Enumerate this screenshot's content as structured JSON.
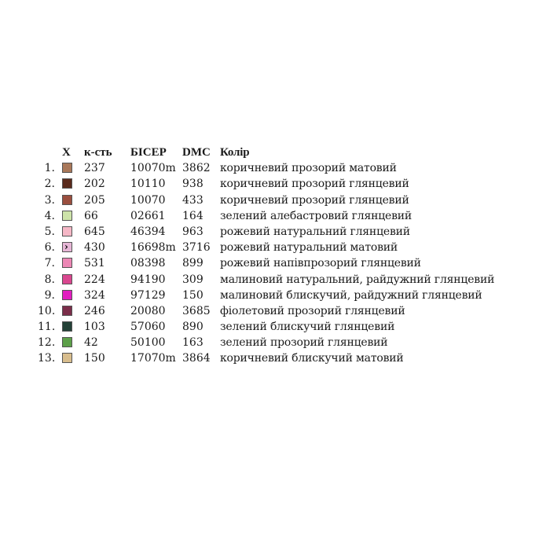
{
  "header": {
    "x": "X",
    "qty": "к-сть",
    "bead": "БІСЕР",
    "dmc": "DMC",
    "color": "Колір"
  },
  "rows": [
    {
      "num": "1.",
      "swatch": "#a9785a",
      "marker": "",
      "qty": "237",
      "bead": "10070m",
      "dmc": "3862",
      "color": "коричневий прозорий матовий"
    },
    {
      "num": "2.",
      "swatch": "#5a2a1c",
      "marker": "",
      "qty": "202",
      "bead": "10110",
      "dmc": "938",
      "color": "коричневий прозорий глянцевий"
    },
    {
      "num": "3.",
      "swatch": "#9a4e3e",
      "marker": "",
      "qty": "205",
      "bead": "10070",
      "dmc": "433",
      "color": "коричневий прозорий глянцевий"
    },
    {
      "num": "4.",
      "swatch": "#cde3a9",
      "marker": "",
      "qty": "66",
      "bead": "02661",
      "dmc": "164",
      "color": "зелений алебастровий глянцевий"
    },
    {
      "num": "5.",
      "swatch": "#f5b7c6",
      "marker": "",
      "qty": "645",
      "bead": "46394",
      "dmc": "963",
      "color": "рожевий натуральний глянцевий"
    },
    {
      "num": "6.",
      "swatch": "#e6b6d6",
      "marker": "›",
      "qty": "430",
      "bead": "16698m",
      "dmc": "3716",
      "color": "рожевий натуральний матовий"
    },
    {
      "num": "7.",
      "swatch": "#ec87b5",
      "marker": "",
      "qty": "531",
      "bead": "08398",
      "dmc": "899",
      "color": "рожевий напівпрозорий глянцевий"
    },
    {
      "num": "8.",
      "swatch": "#d9478f",
      "marker": "",
      "qty": "224",
      "bead": "94190",
      "dmc": "309",
      "color": "малиновий натуральний, райдужний глянцевий"
    },
    {
      "num": "9.",
      "swatch": "#e21ec0",
      "marker": "",
      "qty": "324",
      "bead": "97129",
      "dmc": "150",
      "color": "малиновий блискучий, райдужний глянцевий"
    },
    {
      "num": "10.",
      "swatch": "#7b2e4a",
      "marker": "",
      "qty": "246",
      "bead": "20080",
      "dmc": "3685",
      "color": "фіолетовий прозорий глянцевий"
    },
    {
      "num": "11.",
      "swatch": "#244238",
      "marker": "",
      "qty": "103",
      "bead": "57060",
      "dmc": "890",
      "color": "зелений блискучий глянцевий"
    },
    {
      "num": "12.",
      "swatch": "#5da04a",
      "marker": "",
      "qty": "42",
      "bead": "50100",
      "dmc": "163",
      "color": "зелений прозорий глянцевий"
    },
    {
      "num": "13.",
      "swatch": "#d8bd8d",
      "marker": "",
      "qty": "150",
      "bead": "17070m",
      "dmc": "3864",
      "color": "коричневий блискучий матовий"
    }
  ]
}
